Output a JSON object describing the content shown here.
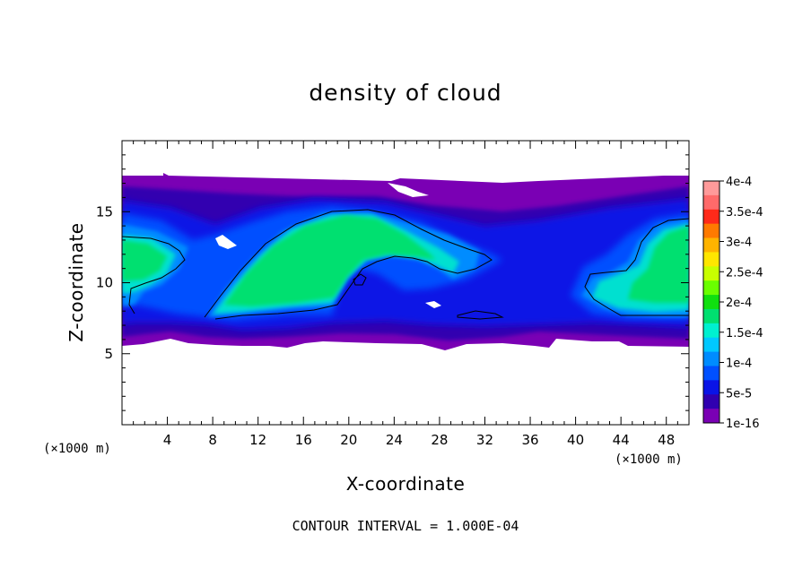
{
  "chart_data": {
    "type": "heatmap",
    "title": "density of cloud",
    "xlabel": "X-coordinate",
    "ylabel": "Z-coordinate",
    "x_unit_left": "(×1000 m)",
    "x_unit_right": "(×1000 m)",
    "xlim": [
      0,
      50
    ],
    "ylim": [
      0,
      20
    ],
    "xticks": [
      4,
      8,
      12,
      16,
      20,
      24,
      28,
      32,
      36,
      40,
      44,
      48
    ],
    "yticks": [
      5,
      10,
      15
    ],
    "contour_interval_label": "CONTOUR INTERVAL = 1.000E-04",
    "colorbar": {
      "labels": [
        "4e-4",
        "3.5e-4",
        "3e-4",
        "2.5e-4",
        "2e-4",
        "1.5e-4",
        "1e-4",
        "5e-5",
        "1e-16"
      ],
      "colors": [
        "#ff9a9a",
        "#ff6a6a",
        "#ff2a1a",
        "#ff7a00",
        "#ffb400",
        "#ffe600",
        "#c8ff00",
        "#6aff00",
        "#10e010",
        "#00e070",
        "#00f0d0",
        "#00c8ff",
        "#008cff",
        "#0050ff",
        "#0a14e6",
        "#3000b0",
        "#7a00b4"
      ]
    }
  }
}
